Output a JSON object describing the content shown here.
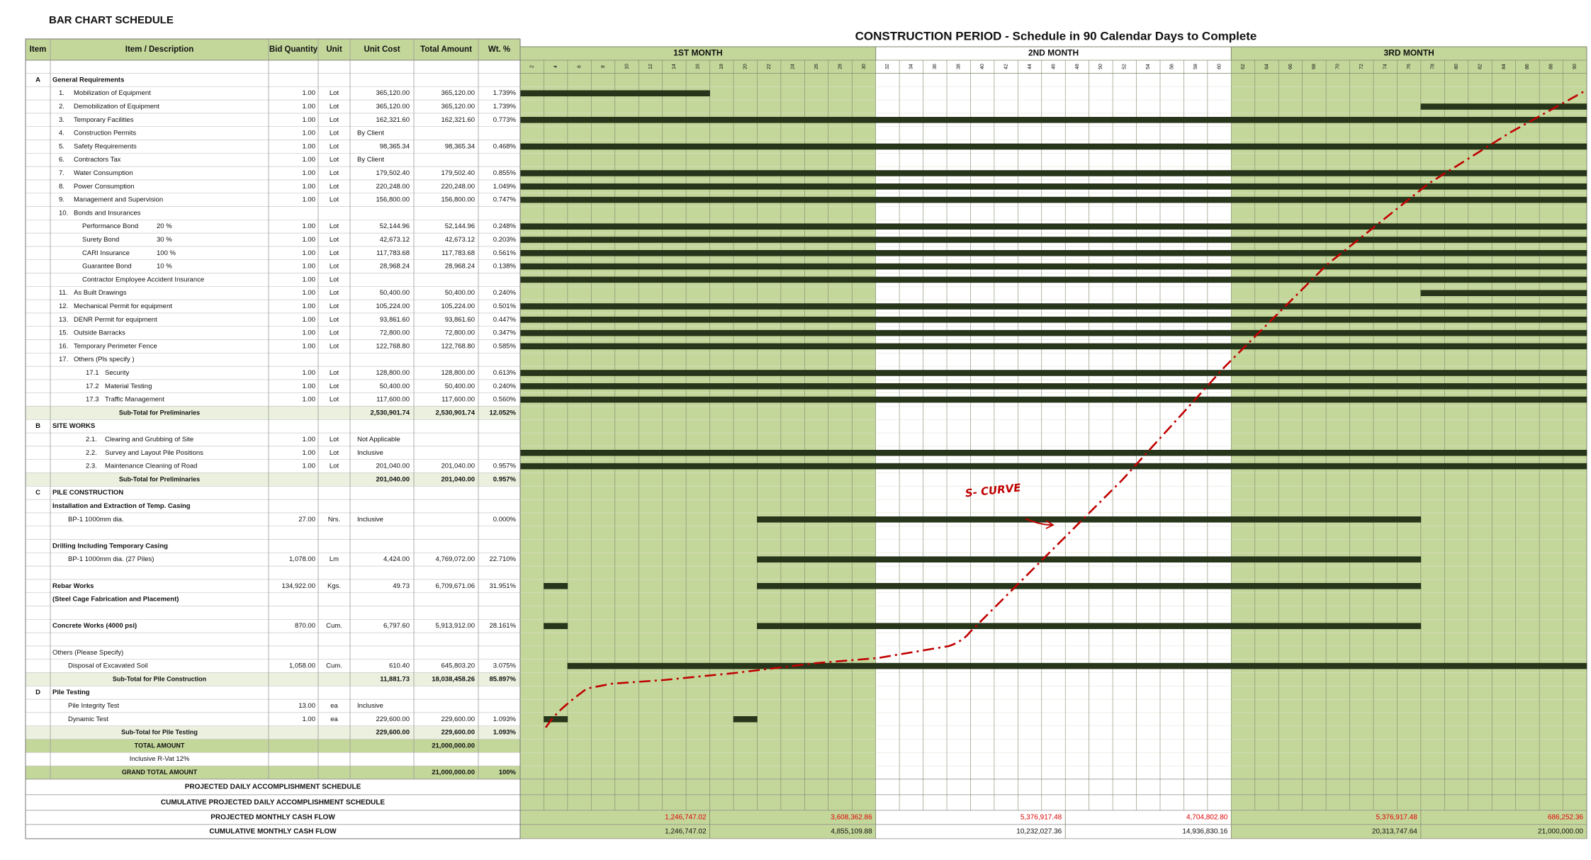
{
  "title": "BAR CHART SCHEDULE",
  "table": {
    "header": [
      "Item",
      "Item / Description",
      "Bid Quantity",
      "Unit",
      "Unit Cost",
      "Total Amount",
      "Wt. %"
    ],
    "rows": [
      {
        "item": "A",
        "desc": "General Requirements",
        "style": "section"
      },
      {
        "no": "1.",
        "desc": "Mobilization of Equipment",
        "qty": "1.00",
        "unit": "Lot",
        "unit_cost": "365,120.00",
        "total": "365,120.00",
        "wt": "1.739%",
        "bars": [
          [
            2,
            16
          ]
        ]
      },
      {
        "no": "2.",
        "desc": "Demobilization of Equipment",
        "qty": "1.00",
        "unit": "Lot",
        "unit_cost": "365,120.00",
        "total": "365,120.00",
        "wt": "1.739%",
        "bars": [
          [
            78,
            90
          ]
        ]
      },
      {
        "no": "3.",
        "desc": "Temporary Facilities",
        "qty": "1.00",
        "unit": "Lot",
        "unit_cost": "162,321.60",
        "total": "162,321.60",
        "wt": "0.773%",
        "bars": [
          [
            2,
            90
          ]
        ]
      },
      {
        "no": "4.",
        "desc": "Construction Permits",
        "qty": "1.00",
        "unit": "Lot",
        "unit_cost": "By Client"
      },
      {
        "no": "5.",
        "desc": "Safety Requirements",
        "qty": "1.00",
        "unit": "Lot",
        "unit_cost": "98,365.34",
        "total": "98,365.34",
        "wt": "0.468%",
        "bars": [
          [
            2,
            90
          ]
        ]
      },
      {
        "no": "6.",
        "desc": "Contractors Tax",
        "qty": "1.00",
        "unit": "Lot",
        "unit_cost": "By Client"
      },
      {
        "no": "7.",
        "desc": "Water Consumption",
        "qty": "1.00",
        "unit": "Lot",
        "unit_cost": "179,502.40",
        "total": "179,502.40",
        "wt": "0.855%",
        "bars": [
          [
            2,
            90
          ]
        ]
      },
      {
        "no": "8.",
        "desc": "Power Consumption",
        "qty": "1.00",
        "unit": "Lot",
        "unit_cost": "220,248.00",
        "total": "220,248.00",
        "wt": "1.049%",
        "bars": [
          [
            2,
            90
          ]
        ]
      },
      {
        "no": "9.",
        "desc": "Management and Supervision",
        "qty": "1.00",
        "unit": "Lot",
        "unit_cost": "156,800.00",
        "total": "156,800.00",
        "wt": "0.747%",
        "bars": [
          [
            2,
            90
          ]
        ]
      },
      {
        "no": "10.",
        "desc": "Bonds and Insurances"
      },
      {
        "desc": "Performance Bond",
        "pct": "20 %",
        "qty": "1.00",
        "unit": "Lot",
        "unit_cost": "52,144.96",
        "total": "52,144.96",
        "wt": "0.248%",
        "bars": [
          [
            2,
            90
          ]
        ]
      },
      {
        "desc": "Surety Bond",
        "pct": "30 %",
        "qty": "1.00",
        "unit": "Lot",
        "unit_cost": "42,673.12",
        "total": "42,673.12",
        "wt": "0.203%",
        "bars": [
          [
            2,
            90
          ]
        ]
      },
      {
        "desc": "CARI Insurance",
        "pct": "100 %",
        "qty": "1.00",
        "unit": "Lot",
        "unit_cost": "117,783.68",
        "total": "117,783.68",
        "wt": "0.561%",
        "bars": [
          [
            2,
            90
          ]
        ]
      },
      {
        "desc": "Guarantee Bond",
        "pct": "10 %",
        "qty": "1.00",
        "unit": "Lot",
        "unit_cost": "28,968.24",
        "total": "28,968.24",
        "wt": "0.138%",
        "bars": [
          [
            2,
            90
          ]
        ]
      },
      {
        "desc": "Contractor Employee Accident Insurance",
        "sub": true,
        "qty": "1.00",
        "unit": "Lot",
        "bars": [
          [
            2,
            90
          ]
        ]
      },
      {
        "no": "11.",
        "desc": "As Built Drawings",
        "qty": "1.00",
        "unit": "Lot",
        "unit_cost": "50,400.00",
        "total": "50,400.00",
        "wt": "0.240%",
        "bars": [
          [
            78,
            90
          ]
        ]
      },
      {
        "no": "12.",
        "desc": "Mechanical Permit for equipment",
        "qty": "1.00",
        "unit": "Lot",
        "unit_cost": "105,224.00",
        "total": "105,224.00",
        "wt": "0.501%",
        "bars": [
          [
            2,
            90
          ]
        ]
      },
      {
        "no": "13.",
        "desc": "DENR Permit for equipment",
        "qty": "1.00",
        "unit": "Lot",
        "unit_cost": "93,861.60",
        "total": "93,861.60",
        "wt": "0.447%",
        "bars": [
          [
            2,
            90
          ]
        ]
      },
      {
        "no": "15.",
        "desc": "Outside Barracks",
        "qty": "1.00",
        "unit": "Lot",
        "unit_cost": "72,800.00",
        "total": "72,800.00",
        "wt": "0.347%",
        "bars": [
          [
            2,
            90
          ]
        ]
      },
      {
        "no": "16.",
        "desc": "Temporary Perimeter Fence",
        "qty": "1.00",
        "unit": "Lot",
        "unit_cost": "122,768.80",
        "total": "122,768.80",
        "wt": "0.585%",
        "bars": [
          [
            2,
            90
          ]
        ]
      },
      {
        "no": "17.",
        "desc": "Others  (Pls specify )"
      },
      {
        "no": "17.1",
        "desc": "Security",
        "qty": "1.00",
        "unit": "Lot",
        "unit_cost": "128,800.00",
        "total": "128,800.00",
        "wt": "0.613%",
        "bars": [
          [
            2,
            90
          ]
        ]
      },
      {
        "no": "17.2",
        "desc": "Material Testing",
        "qty": "1.00",
        "unit": "Lot",
        "unit_cost": "50,400.00",
        "total": "50,400.00",
        "wt": "0.240%",
        "bars": [
          [
            2,
            90
          ]
        ]
      },
      {
        "no": "17.3",
        "desc": "Traffic Management",
        "qty": "1.00",
        "unit": "Lot",
        "unit_cost": "117,600.00",
        "total": "117,600.00",
        "wt": "0.560%",
        "bars": [
          [
            2,
            90
          ]
        ]
      },
      {
        "desc": "Sub-Total  for Preliminaries",
        "unit_cost": "2,530,901.74",
        "total": "2,530,901.74",
        "wt": "12.052%",
        "style": "subtotal"
      },
      {
        "item": "B",
        "desc": "SITE WORKS",
        "style": "section"
      },
      {
        "no": "2.1.",
        "desc": "Clearing and Grubbing of Site",
        "qty": "1.00",
        "unit": "Lot",
        "unit_cost": "Not Applicable"
      },
      {
        "no": "2.2.",
        "desc": "Survey and Layout Pile Positions",
        "qty": "1.00",
        "unit": "Lot",
        "unit_cost": "Inclusive",
        "bars": [
          [
            2,
            90
          ]
        ]
      },
      {
        "no": "2.3.",
        "desc": "Maintenance Cleaning of Road",
        "qty": "1.00",
        "unit": "Lot",
        "unit_cost": "201,040.00",
        "total": "201,040.00",
        "wt": "0.957%",
        "bars": [
          [
            2,
            90
          ]
        ]
      },
      {
        "desc": "Sub-Total  for Preliminaries",
        "unit_cost": "201,040.00",
        "total": "201,040.00",
        "wt": "0.957%",
        "style": "subtotal"
      },
      {
        "item": "C",
        "desc": "PILE CONSTRUCTION",
        "style": "section"
      },
      {
        "desc": "Installation and Extraction of Temp. Casing",
        "style": "heading"
      },
      {
        "desc": "BP-1  1000mm dia.",
        "qty": "27.00",
        "unit": "Nrs.",
        "unit_cost": "Inclusive",
        "wt": "0.000%",
        "bars": [
          [
            22,
            76
          ]
        ]
      },
      {
        "style": "blank"
      },
      {
        "desc": "Drilling Including Temporary Casing",
        "style": "heading"
      },
      {
        "desc": "BP-1  1000mm dia. (27 Piles)",
        "qty": "1,078.00",
        "unit": "Lm",
        "unit_cost": "4,424.00",
        "total": "4,769,072.00",
        "wt": "22.710%",
        "bars": [
          [
            22,
            76
          ]
        ]
      },
      {
        "style": "blank"
      },
      {
        "desc": "Rebar Works",
        "qty": "134,922.00",
        "unit": "Kgs.",
        "unit_cost": "49.73",
        "total": "6,709,671.06",
        "wt": "31.951%",
        "bars": [
          [
            4,
            4
          ],
          [
            22,
            76
          ]
        ],
        "style": "heading"
      },
      {
        "desc": "(Steel Cage Fabrication and Placement)",
        "style": "heading"
      },
      {
        "style": "blank"
      },
      {
        "desc": "Concrete Works (4000 psi)",
        "qty": "870.00",
        "unit": "Cum.",
        "unit_cost": "6,797.60",
        "total": "5,913,912.00",
        "wt": "28.161%",
        "bars": [
          [
            4,
            4
          ],
          [
            22,
            76
          ]
        ],
        "style": "heading"
      },
      {
        "style": "blank"
      },
      {
        "desc": "Others (Please Specify)",
        "style": "plain"
      },
      {
        "desc": "Disposal of Excavated Soil",
        "qty": "1,058.00",
        "unit": "Cum.",
        "unit_cost": "610.40",
        "total": "645,803.20",
        "wt": "3.075%",
        "bars": [
          [
            6,
            90
          ]
        ]
      },
      {
        "desc": "Sub-Total  for Pile Construction",
        "unit_cost": "11,881.73",
        "total": "18,038,458.26",
        "wt": "85.897%",
        "style": "subtotal"
      },
      {
        "item": "D",
        "desc": "Pile Testing",
        "style": "section"
      },
      {
        "desc": "Pile Integrity Test",
        "qty": "13.00",
        "unit": "ea",
        "unit_cost": "Inclusive"
      },
      {
        "desc": "Dynamic Test",
        "qty": "1.00",
        "unit": "ea",
        "unit_cost": "229,600.00",
        "total": "229,600.00",
        "wt": "1.093%",
        "bars": [
          [
            4,
            4
          ],
          [
            20,
            20
          ]
        ]
      },
      {
        "desc": "Sub-Total  for Pile Testing",
        "unit_cost": "229,600.00",
        "total": "229,600.00",
        "wt": "1.093%",
        "style": "subtotal"
      },
      {
        "desc": "TOTAL AMOUNT",
        "total": "21,000,000.00",
        "style": "total"
      },
      {
        "desc": "Inclusive R-Vat 12%",
        "style": "note"
      },
      {
        "desc": "GRAND TOTAL AMOUNT",
        "total": "21,000,000.00",
        "wt": "100%",
        "style": "total"
      }
    ]
  },
  "schedule": {
    "title": "CONSTRUCTION PERIOD  -  Schedule in 90 Calendar Days to Complete",
    "months": [
      "1ST MONTH",
      "2ND MONTH",
      "3RD MONTH"
    ],
    "month_fills": [
      "#c4d79b",
      "#ffffff",
      "#c4d79b"
    ],
    "bar_color": "#27361a",
    "days": [
      2,
      4,
      6,
      8,
      10,
      12,
      14,
      16,
      18,
      20,
      22,
      24,
      26,
      28,
      30,
      32,
      34,
      36,
      38,
      40,
      42,
      44,
      46,
      48,
      50,
      52,
      54,
      56,
      58,
      60,
      62,
      64,
      66,
      68,
      70,
      72,
      74,
      76,
      78,
      80,
      82,
      84,
      86,
      88,
      90
    ],
    "s_curve_label": "S- CURVE"
  },
  "footer": {
    "labels": [
      "PROJECTED DAILY ACCOMPLISHMENT SCHEDULE",
      "CUMULATIVE PROJECTED DAILY ACCOMPLISHMENT SCHEDULE",
      "PROJECTED MONTHLY CASH FLOW",
      "CUMULATIVE MONTHLY CASH FLOW"
    ],
    "cash_flow_days": [
      16,
      30,
      46,
      60,
      76,
      90
    ],
    "projected": [
      "1,246,747.02",
      "3,608,362.86",
      "5,376,917.48",
      "4,704,802.80",
      "5,376,917.48",
      "686,252.36"
    ],
    "cumulative": [
      "1,246,747.02",
      "4,855,109.88",
      "10,232,027.36",
      "14,936,830.16",
      "20,313,747.64",
      "21,000,000.00"
    ]
  }
}
